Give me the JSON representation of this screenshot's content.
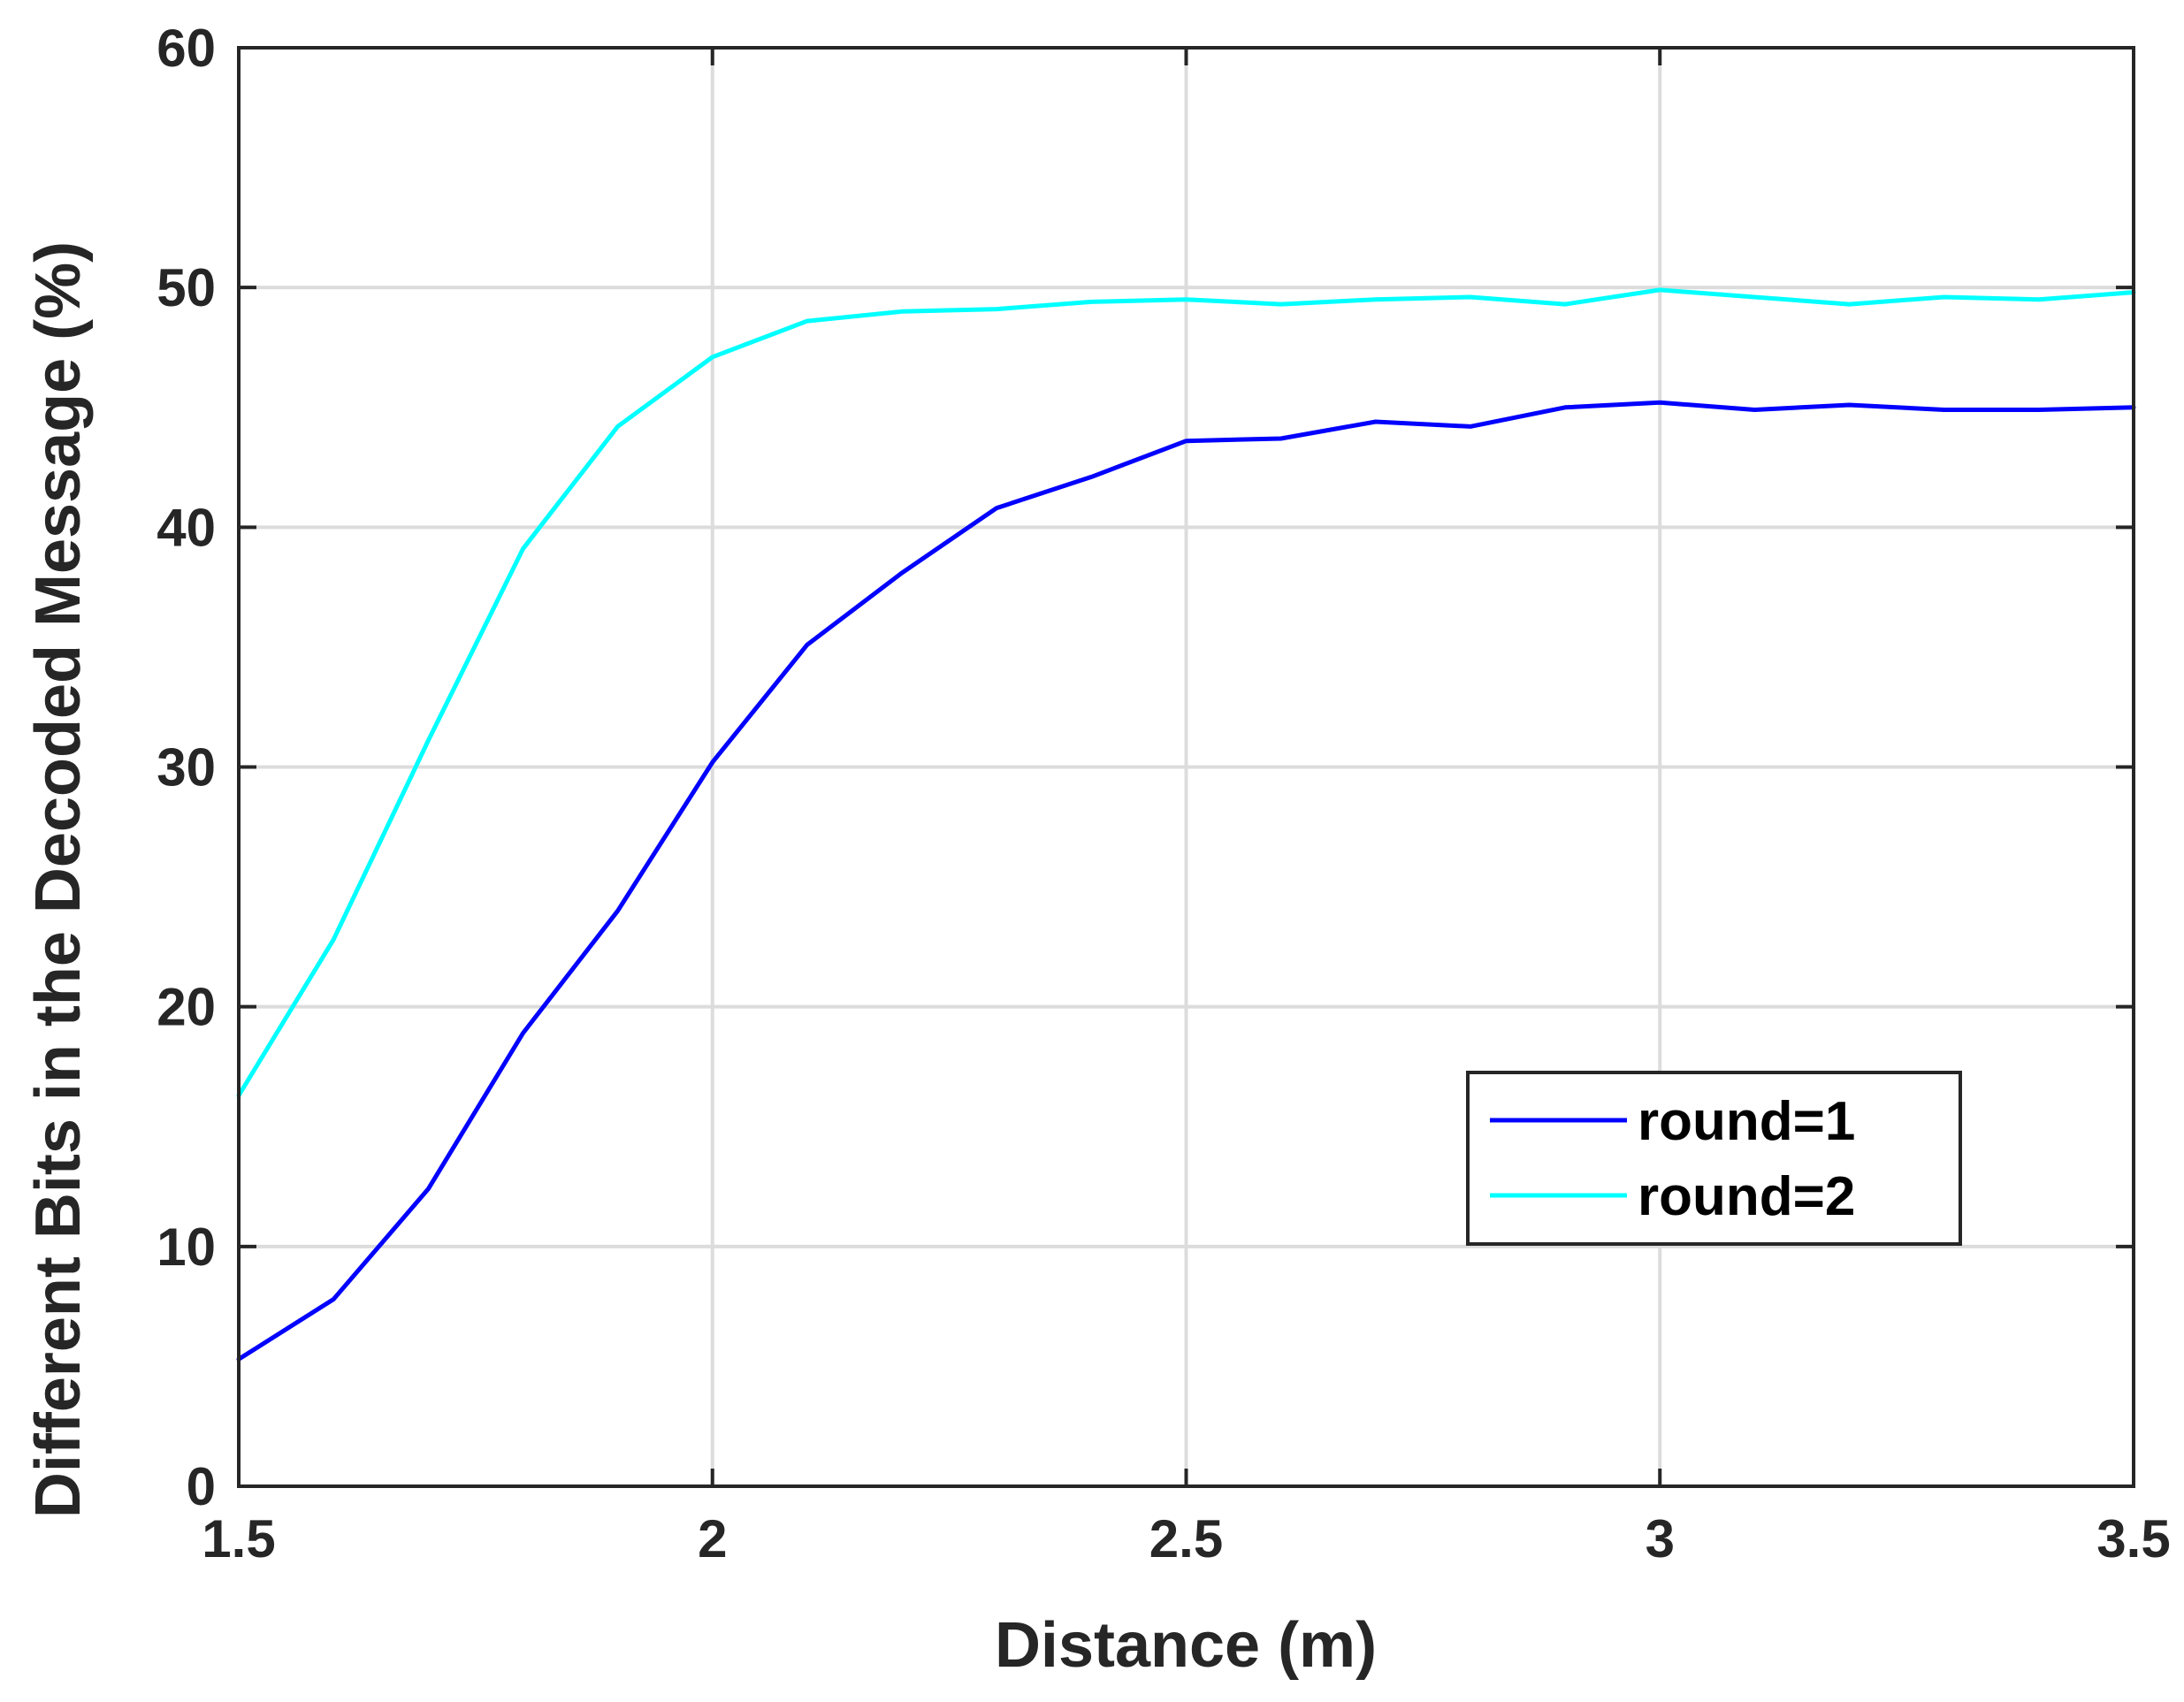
{
  "chart_data": {
    "type": "line",
    "xlabel": "Distance (m)",
    "ylabel": "Different Bits in the Decoded Message (%)",
    "xlim": [
      1.5,
      3.5
    ],
    "ylim": [
      0,
      60
    ],
    "xticks": [
      1.5,
      2,
      2.5,
      3,
      3.5
    ],
    "xtick_labels": [
      "1.5",
      "2",
      "2.5",
      "3",
      "3.5"
    ],
    "yticks": [
      0,
      10,
      20,
      30,
      40,
      50,
      60
    ],
    "ytick_labels": [
      "0",
      "10",
      "20",
      "30",
      "40",
      "50",
      "60"
    ],
    "grid": true,
    "legend_position": "lower-right",
    "x": [
      1.5,
      1.6,
      1.7,
      1.8,
      1.9,
      2.0,
      2.1,
      2.2,
      2.3,
      2.4,
      2.5,
      2.6,
      2.7,
      2.8,
      2.9,
      3.0,
      3.1,
      3.2,
      3.3,
      3.4,
      3.5
    ],
    "series": [
      {
        "name": "round=1",
        "color": "#0000ff",
        "values": [
          5.3,
          7.8,
          12.4,
          18.9,
          24.0,
          30.2,
          35.1,
          38.1,
          40.8,
          42.1,
          43.6,
          43.7,
          44.4,
          44.2,
          45.0,
          45.2,
          44.9,
          45.1,
          44.9,
          44.9,
          45.0
        ]
      },
      {
        "name": "round=2",
        "color": "#00ffff",
        "values": [
          16.3,
          22.8,
          31.1,
          39.1,
          44.2,
          47.1,
          48.6,
          49.0,
          49.1,
          49.4,
          49.5,
          49.3,
          49.5,
          49.6,
          49.3,
          49.9,
          49.6,
          49.3,
          49.6,
          49.5,
          49.8
        ]
      }
    ]
  }
}
